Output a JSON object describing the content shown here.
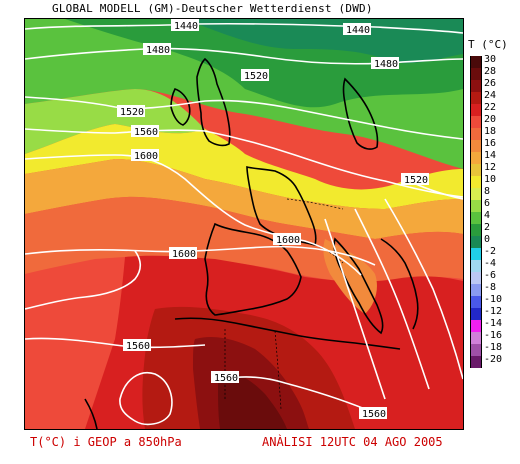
{
  "header": {
    "title": "GLOBAL MODELL (GM)-Deutscher Wetterdienst (DWD)"
  },
  "legend": {
    "title": "T (°C)",
    "entries": [
      {
        "label": "30",
        "color": "#4a0a0a"
      },
      {
        "label": "28",
        "color": "#6a0c0c"
      },
      {
        "label": "26",
        "color": "#8c1010"
      },
      {
        "label": "24",
        "color": "#b41a12"
      },
      {
        "label": "22",
        "color": "#d82020"
      },
      {
        "label": "20",
        "color": "#ee4a3a"
      },
      {
        "label": "18",
        "color": "#f06a3c"
      },
      {
        "label": "16",
        "color": "#f28a3c"
      },
      {
        "label": "14",
        "color": "#f4a83c"
      },
      {
        "label": "12",
        "color": "#e8c43a"
      },
      {
        "label": "10",
        "color": "#f2ea2e"
      },
      {
        "label": "8",
        "color": "#d8ee50"
      },
      {
        "label": "6",
        "color": "#98dc46"
      },
      {
        "label": "4",
        "color": "#5ac23e"
      },
      {
        "label": "2",
        "color": "#2a9c3c"
      },
      {
        "label": "0",
        "color": "#1a8a56"
      },
      {
        "label": "-2",
        "color": "#20d0e8"
      },
      {
        "label": "-4",
        "color": "#a0d8f0"
      },
      {
        "label": "-6",
        "color": "#bcc8f4"
      },
      {
        "label": "-8",
        "color": "#8a9af0"
      },
      {
        "label": "-10",
        "color": "#4a58e8"
      },
      {
        "label": "-12",
        "color": "#2228c8"
      },
      {
        "label": "-14",
        "color": "#f020f0"
      },
      {
        "label": "-16",
        "color": "#d080d8"
      },
      {
        "label": "-18",
        "color": "#a050a8"
      },
      {
        "label": "-20",
        "color": "#6a1a6a"
      }
    ]
  },
  "contour_labels": [
    {
      "id": "1440-left",
      "text": "1440"
    },
    {
      "id": "1440-right",
      "text": "1440"
    },
    {
      "id": "1480-left",
      "text": "1480"
    },
    {
      "id": "1480-right",
      "text": "1480"
    },
    {
      "id": "1520-north",
      "text": "1520"
    },
    {
      "id": "1520-west",
      "text": "1520"
    },
    {
      "id": "1520-east",
      "text": "1520"
    },
    {
      "id": "1560-upper",
      "text": "1560"
    },
    {
      "id": "1560-west",
      "text": "1560"
    },
    {
      "id": "1560-africa",
      "text": "1560"
    },
    {
      "id": "1560-south",
      "text": "1560"
    },
    {
      "id": "1600-upper",
      "text": "1600"
    },
    {
      "id": "1600-west",
      "text": "1600"
    },
    {
      "id": "1600-iberia",
      "text": "1600"
    }
  ],
  "footer": {
    "left": "T(°C) i GEOP a 850hPa",
    "right": "ANÀLISI 12UTC 04 AGO 2005"
  }
}
